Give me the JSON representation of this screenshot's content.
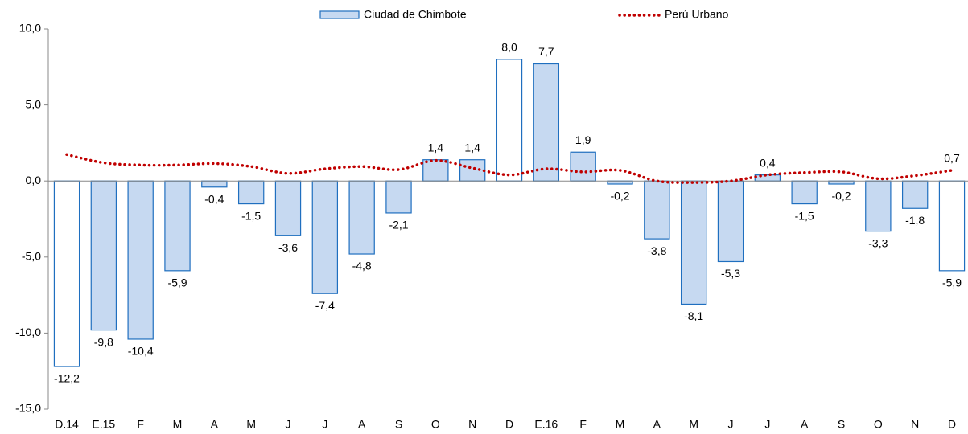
{
  "chart_data": {
    "type": "bar-line",
    "categories": [
      "D.14",
      "E.15",
      "F",
      "M",
      "A",
      "M",
      "J",
      "J",
      "A",
      "S",
      "O",
      "N",
      "D",
      "E.16",
      "F",
      "M",
      "A",
      "M",
      "J",
      "J",
      "A",
      "S",
      "O",
      "N",
      "D"
    ],
    "series": [
      {
        "name": "Ciudad de Chimbote",
        "type": "bar",
        "color": "#c6d9f1",
        "edge_color": "#1f6fbf",
        "colors": [
          "#ffffff",
          "#c6d9f1",
          "#c6d9f1",
          "#c6d9f1",
          "#c6d9f1",
          "#c6d9f1",
          "#c6d9f1",
          "#c6d9f1",
          "#c6d9f1",
          "#c6d9f1",
          "#c6d9f1",
          "#c6d9f1",
          "#ffffff",
          "#c6d9f1",
          "#c6d9f1",
          "#c6d9f1",
          "#c6d9f1",
          "#c6d9f1",
          "#c6d9f1",
          "#c6d9f1",
          "#c6d9f1",
          "#c6d9f1",
          "#c6d9f1",
          "#c6d9f1",
          "#ffffff"
        ],
        "values": [
          -12.2,
          -9.8,
          -10.4,
          -5.9,
          -0.4,
          -1.5,
          -3.6,
          -7.4,
          -4.8,
          -2.1,
          1.4,
          1.4,
          8.0,
          7.7,
          1.9,
          -0.2,
          -3.8,
          -8.1,
          -5.3,
          0.4,
          -1.5,
          -0.2,
          -3.3,
          -1.8,
          -5.9
        ],
        "value_labels": [
          "-12,2",
          "-9,8",
          "-10,4",
          "-5,9",
          "-0,4",
          "-1,5",
          "-3,6",
          "-7,4",
          "-4,8",
          "-2,1",
          "1,4",
          "1,4",
          "8,0",
          "7,7",
          "1,9",
          "-0,2",
          "-3,8",
          "-8,1",
          "-5,3",
          "0,4",
          "-1,5",
          "-0,2",
          "-3,3",
          "-1,8",
          "-5,9"
        ]
      },
      {
        "name": "Perú Urbano",
        "type": "line",
        "color": "#c00000",
        "values": [
          1.74,
          1.2,
          1.05,
          1.05,
          1.15,
          0.95,
          0.5,
          0.8,
          0.95,
          0.75,
          1.35,
          0.85,
          0.4,
          0.8,
          0.6,
          0.7,
          0.0,
          -0.1,
          0.0,
          0.4,
          0.55,
          0.6,
          0.15,
          0.35,
          0.7
        ],
        "value_labels": [
          null,
          null,
          null,
          null,
          null,
          null,
          null,
          null,
          null,
          null,
          null,
          null,
          null,
          null,
          null,
          null,
          null,
          null,
          null,
          null,
          null,
          null,
          null,
          null,
          "0,7"
        ]
      }
    ],
    "ylim": [
      -15,
      10
    ],
    "yticks": [
      {
        "value": -15,
        "label": "-15,0"
      },
      {
        "value": -10,
        "label": "-10,0"
      },
      {
        "value": -5,
        "label": "-5,0"
      },
      {
        "value": 0,
        "label": "0,0"
      },
      {
        "value": 5,
        "label": "5,0"
      },
      {
        "value": 10,
        "label": "10,0"
      }
    ],
    "grid": false,
    "legend": "top"
  }
}
